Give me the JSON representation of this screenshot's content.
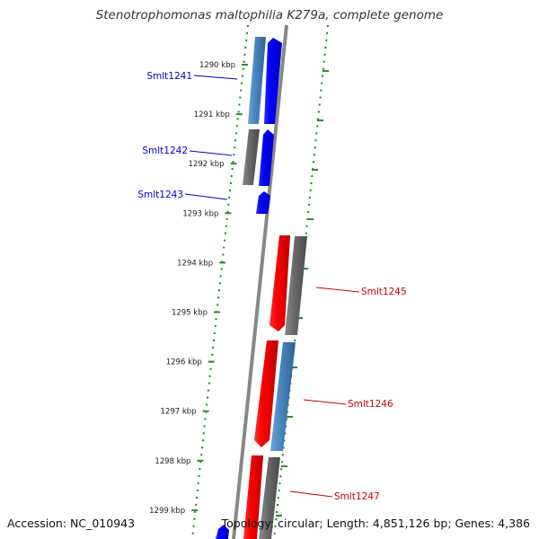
{
  "title": "Stenotrophomonas maltophilia K279a, complete genome",
  "footer": {
    "accession": "Accession: NC_010943",
    "summary": "Topology: circular; Length: 4,851,126 bp; Genes: 4,386"
  },
  "ticks": [
    "1290 kbp",
    "1291 kbp",
    "1292 kbp",
    "1293 kbp",
    "1294 kbp",
    "1295 kbp",
    "1296 kbp",
    "1297 kbp",
    "1298 kbp",
    "1299 kbp"
  ],
  "genes": [
    {
      "name": "Smlt1241",
      "strand": "forward",
      "color": "#0000cc"
    },
    {
      "name": "Smlt1242",
      "strand": "forward",
      "color": "#0000cc"
    },
    {
      "name": "Smlt1243",
      "strand": "forward",
      "color": "#0000cc"
    },
    {
      "name": "Smlt1245",
      "strand": "reverse",
      "color": "#cc0000"
    },
    {
      "name": "Smlt1246",
      "strand": "reverse",
      "color": "#cc0000"
    },
    {
      "name": "Smlt1247",
      "strand": "reverse",
      "color": "#cc0000"
    }
  ],
  "colors": {
    "forward_cds": "#0000ff",
    "reverse_cds": "#ff0000",
    "blast_blue": "#4a86c0",
    "blast_grey": "#6a6a6a",
    "backbone": "#888888",
    "gc_dots": "#1a8a1a",
    "tick_mark": "#2e8b2e"
  }
}
